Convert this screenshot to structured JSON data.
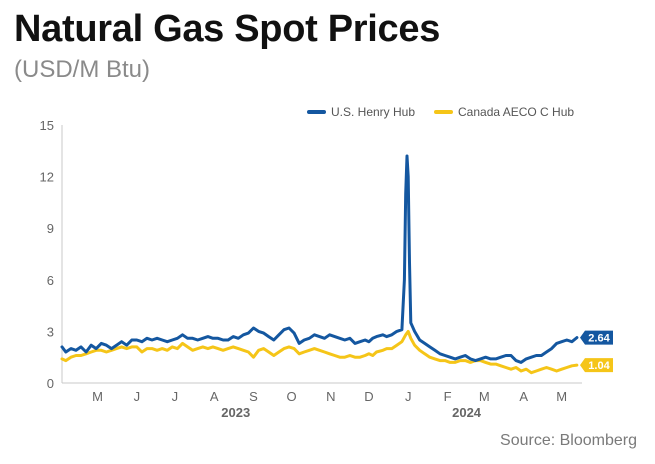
{
  "header": {
    "title": "Natural Gas Spot Prices",
    "subtitle": "(USD/M Btu)"
  },
  "footer": {
    "source": "Source: Bloomberg"
  },
  "colors": {
    "henry_hub": "#1457a0",
    "aeco": "#f5c518",
    "axis": "#c8c8c8",
    "tick_text": "#666666"
  },
  "chart_data": {
    "type": "line",
    "title": "Natural Gas Spot Prices",
    "subtitle": "(USD/M Btu)",
    "xlabel": "",
    "ylabel": "",
    "ylim": [
      0,
      15
    ],
    "yticks": [
      0,
      3,
      6,
      9,
      12,
      15
    ],
    "xlim": [
      "2023-04-17",
      "2024-05-31"
    ],
    "month_ticks": [
      {
        "label": "M",
        "date": "2023-05-15"
      },
      {
        "label": "J",
        "date": "2023-06-15"
      },
      {
        "label": "J",
        "date": "2023-07-15"
      },
      {
        "label": "A",
        "date": "2023-08-15"
      },
      {
        "label": "S",
        "date": "2023-09-15"
      },
      {
        "label": "O",
        "date": "2023-10-15"
      },
      {
        "label": "N",
        "date": "2023-11-15"
      },
      {
        "label": "D",
        "date": "2023-12-15"
      },
      {
        "label": "J",
        "date": "2024-01-15"
      },
      {
        "label": "F",
        "date": "2024-02-15"
      },
      {
        "label": "M",
        "date": "2024-03-15"
      },
      {
        "label": "A",
        "date": "2024-04-15"
      },
      {
        "label": "M",
        "date": "2024-05-15"
      }
    ],
    "year_labels": [
      {
        "label": "2023",
        "date": "2023-09-01"
      },
      {
        "label": "2024",
        "date": "2024-03-01"
      }
    ],
    "grid": false,
    "legend_position": "top-right",
    "end_labels": [
      {
        "series": "U.S. Henry Hub",
        "text": "2.64"
      },
      {
        "series": "Canada AECO C Hub",
        "text": "1.04"
      }
    ],
    "series": [
      {
        "name": "U.S. Henry Hub",
        "color": "#1457a0",
        "points": [
          [
            "2023-04-17",
            2.1
          ],
          [
            "2023-04-20",
            1.8
          ],
          [
            "2023-04-24",
            2.0
          ],
          [
            "2023-04-28",
            1.9
          ],
          [
            "2023-05-02",
            2.1
          ],
          [
            "2023-05-06",
            1.8
          ],
          [
            "2023-05-10",
            2.2
          ],
          [
            "2023-05-14",
            2.0
          ],
          [
            "2023-05-18",
            2.3
          ],
          [
            "2023-05-22",
            2.2
          ],
          [
            "2023-05-26",
            2.0
          ],
          [
            "2023-05-30",
            2.2
          ],
          [
            "2023-06-03",
            2.4
          ],
          [
            "2023-06-07",
            2.2
          ],
          [
            "2023-06-11",
            2.5
          ],
          [
            "2023-06-15",
            2.5
          ],
          [
            "2023-06-19",
            2.4
          ],
          [
            "2023-06-23",
            2.6
          ],
          [
            "2023-06-27",
            2.5
          ],
          [
            "2023-07-01",
            2.6
          ],
          [
            "2023-07-05",
            2.5
          ],
          [
            "2023-07-09",
            2.4
          ],
          [
            "2023-07-13",
            2.5
          ],
          [
            "2023-07-17",
            2.6
          ],
          [
            "2023-07-21",
            2.8
          ],
          [
            "2023-07-25",
            2.6
          ],
          [
            "2023-07-29",
            2.6
          ],
          [
            "2023-08-02",
            2.5
          ],
          [
            "2023-08-06",
            2.6
          ],
          [
            "2023-08-10",
            2.7
          ],
          [
            "2023-08-14",
            2.6
          ],
          [
            "2023-08-18",
            2.6
          ],
          [
            "2023-08-22",
            2.5
          ],
          [
            "2023-08-26",
            2.5
          ],
          [
            "2023-08-30",
            2.7
          ],
          [
            "2023-09-03",
            2.6
          ],
          [
            "2023-09-07",
            2.8
          ],
          [
            "2023-09-11",
            2.9
          ],
          [
            "2023-09-15",
            3.2
          ],
          [
            "2023-09-19",
            3.0
          ],
          [
            "2023-09-23",
            2.9
          ],
          [
            "2023-09-27",
            2.7
          ],
          [
            "2023-10-01",
            2.5
          ],
          [
            "2023-10-05",
            2.8
          ],
          [
            "2023-10-09",
            3.1
          ],
          [
            "2023-10-13",
            3.2
          ],
          [
            "2023-10-17",
            2.9
          ],
          [
            "2023-10-21",
            2.3
          ],
          [
            "2023-10-25",
            2.5
          ],
          [
            "2023-10-29",
            2.6
          ],
          [
            "2023-11-02",
            2.8
          ],
          [
            "2023-11-06",
            2.7
          ],
          [
            "2023-11-10",
            2.6
          ],
          [
            "2023-11-14",
            2.8
          ],
          [
            "2023-11-18",
            2.7
          ],
          [
            "2023-11-22",
            2.6
          ],
          [
            "2023-11-26",
            2.5
          ],
          [
            "2023-11-30",
            2.6
          ],
          [
            "2023-12-04",
            2.3
          ],
          [
            "2023-12-08",
            2.4
          ],
          [
            "2023-12-12",
            2.5
          ],
          [
            "2023-12-15",
            2.4
          ],
          [
            "2023-12-18",
            2.6
          ],
          [
            "2023-12-21",
            2.7
          ],
          [
            "2023-12-26",
            2.8
          ],
          [
            "2023-12-29",
            2.7
          ],
          [
            "2024-01-02",
            2.8
          ],
          [
            "2024-01-06",
            3.0
          ],
          [
            "2024-01-10",
            3.1
          ],
          [
            "2024-01-12",
            6.0
          ],
          [
            "2024-01-13",
            11.0
          ],
          [
            "2024-01-14",
            13.2
          ],
          [
            "2024-01-15",
            12.0
          ],
          [
            "2024-01-16",
            7.0
          ],
          [
            "2024-01-17",
            3.5
          ],
          [
            "2024-01-20",
            3.0
          ],
          [
            "2024-01-24",
            2.5
          ],
          [
            "2024-01-28",
            2.3
          ],
          [
            "2024-02-01",
            2.1
          ],
          [
            "2024-02-05",
            1.9
          ],
          [
            "2024-02-09",
            1.7
          ],
          [
            "2024-02-13",
            1.6
          ],
          [
            "2024-02-17",
            1.5
          ],
          [
            "2024-02-21",
            1.4
          ],
          [
            "2024-02-25",
            1.5
          ],
          [
            "2024-02-29",
            1.6
          ],
          [
            "2024-03-04",
            1.4
          ],
          [
            "2024-03-08",
            1.3
          ],
          [
            "2024-03-12",
            1.4
          ],
          [
            "2024-03-16",
            1.5
          ],
          [
            "2024-03-20",
            1.4
          ],
          [
            "2024-03-24",
            1.4
          ],
          [
            "2024-03-28",
            1.5
          ],
          [
            "2024-04-01",
            1.6
          ],
          [
            "2024-04-05",
            1.6
          ],
          [
            "2024-04-09",
            1.3
          ],
          [
            "2024-04-13",
            1.2
          ],
          [
            "2024-04-17",
            1.4
          ],
          [
            "2024-04-21",
            1.5
          ],
          [
            "2024-04-25",
            1.6
          ],
          [
            "2024-04-29",
            1.6
          ],
          [
            "2024-05-03",
            1.8
          ],
          [
            "2024-05-07",
            2.0
          ],
          [
            "2024-05-11",
            2.3
          ],
          [
            "2024-05-15",
            2.4
          ],
          [
            "2024-05-19",
            2.5
          ],
          [
            "2024-05-23",
            2.4
          ],
          [
            "2024-05-27",
            2.64
          ]
        ]
      },
      {
        "name": "Canada AECO C Hub",
        "color": "#f5c518",
        "points": [
          [
            "2023-04-17",
            1.4
          ],
          [
            "2023-04-20",
            1.3
          ],
          [
            "2023-04-24",
            1.5
          ],
          [
            "2023-04-28",
            1.6
          ],
          [
            "2023-05-02",
            1.6
          ],
          [
            "2023-05-06",
            1.7
          ],
          [
            "2023-05-10",
            1.8
          ],
          [
            "2023-05-14",
            1.9
          ],
          [
            "2023-05-18",
            1.9
          ],
          [
            "2023-05-22",
            1.8
          ],
          [
            "2023-05-26",
            1.9
          ],
          [
            "2023-05-30",
            2.0
          ],
          [
            "2023-06-03",
            2.1
          ],
          [
            "2023-06-07",
            2.0
          ],
          [
            "2023-06-11",
            2.1
          ],
          [
            "2023-06-15",
            2.1
          ],
          [
            "2023-06-19",
            1.8
          ],
          [
            "2023-06-23",
            2.0
          ],
          [
            "2023-06-27",
            2.0
          ],
          [
            "2023-07-01",
            1.9
          ],
          [
            "2023-07-05",
            2.0
          ],
          [
            "2023-07-09",
            1.9
          ],
          [
            "2023-07-13",
            2.1
          ],
          [
            "2023-07-17",
            2.0
          ],
          [
            "2023-07-21",
            2.3
          ],
          [
            "2023-07-25",
            2.1
          ],
          [
            "2023-07-29",
            1.9
          ],
          [
            "2023-08-02",
            2.0
          ],
          [
            "2023-08-06",
            2.1
          ],
          [
            "2023-08-10",
            2.0
          ],
          [
            "2023-08-14",
            2.1
          ],
          [
            "2023-08-18",
            2.0
          ],
          [
            "2023-08-22",
            1.9
          ],
          [
            "2023-08-26",
            2.0
          ],
          [
            "2023-08-30",
            2.1
          ],
          [
            "2023-09-03",
            2.0
          ],
          [
            "2023-09-07",
            1.9
          ],
          [
            "2023-09-11",
            1.8
          ],
          [
            "2023-09-15",
            1.5
          ],
          [
            "2023-09-19",
            1.9
          ],
          [
            "2023-09-23",
            2.0
          ],
          [
            "2023-09-27",
            1.8
          ],
          [
            "2023-10-01",
            1.6
          ],
          [
            "2023-10-05",
            1.8
          ],
          [
            "2023-10-09",
            2.0
          ],
          [
            "2023-10-13",
            2.1
          ],
          [
            "2023-10-17",
            2.0
          ],
          [
            "2023-10-21",
            1.7
          ],
          [
            "2023-10-25",
            1.8
          ],
          [
            "2023-10-29",
            1.9
          ],
          [
            "2023-11-02",
            2.0
          ],
          [
            "2023-11-06",
            1.9
          ],
          [
            "2023-11-10",
            1.8
          ],
          [
            "2023-11-14",
            1.7
          ],
          [
            "2023-11-18",
            1.6
          ],
          [
            "2023-11-22",
            1.5
          ],
          [
            "2023-11-26",
            1.5
          ],
          [
            "2023-11-30",
            1.6
          ],
          [
            "2023-12-04",
            1.5
          ],
          [
            "2023-12-08",
            1.5
          ],
          [
            "2023-12-12",
            1.6
          ],
          [
            "2023-12-15",
            1.7
          ],
          [
            "2023-12-18",
            1.6
          ],
          [
            "2023-12-21",
            1.8
          ],
          [
            "2023-12-26",
            1.9
          ],
          [
            "2023-12-29",
            2.0
          ],
          [
            "2024-01-02",
            2.0
          ],
          [
            "2024-01-06",
            2.2
          ],
          [
            "2024-01-10",
            2.4
          ],
          [
            "2024-01-13",
            2.8
          ],
          [
            "2024-01-15",
            3.0
          ],
          [
            "2024-01-17",
            2.6
          ],
          [
            "2024-01-20",
            2.2
          ],
          [
            "2024-01-24",
            1.9
          ],
          [
            "2024-01-28",
            1.7
          ],
          [
            "2024-02-01",
            1.5
          ],
          [
            "2024-02-05",
            1.4
          ],
          [
            "2024-02-09",
            1.3
          ],
          [
            "2024-02-13",
            1.3
          ],
          [
            "2024-02-17",
            1.2
          ],
          [
            "2024-02-21",
            1.2
          ],
          [
            "2024-02-25",
            1.3
          ],
          [
            "2024-02-29",
            1.3
          ],
          [
            "2024-03-04",
            1.2
          ],
          [
            "2024-03-08",
            1.3
          ],
          [
            "2024-03-12",
            1.3
          ],
          [
            "2024-03-16",
            1.2
          ],
          [
            "2024-03-20",
            1.1
          ],
          [
            "2024-03-24",
            1.1
          ],
          [
            "2024-03-28",
            1.0
          ],
          [
            "2024-04-01",
            0.9
          ],
          [
            "2024-04-05",
            0.8
          ],
          [
            "2024-04-09",
            0.9
          ],
          [
            "2024-04-13",
            0.7
          ],
          [
            "2024-04-17",
            0.8
          ],
          [
            "2024-04-21",
            0.6
          ],
          [
            "2024-04-25",
            0.7
          ],
          [
            "2024-04-29",
            0.8
          ],
          [
            "2024-05-03",
            0.9
          ],
          [
            "2024-05-07",
            0.8
          ],
          [
            "2024-05-11",
            0.7
          ],
          [
            "2024-05-15",
            0.8
          ],
          [
            "2024-05-19",
            0.9
          ],
          [
            "2024-05-23",
            1.0
          ],
          [
            "2024-05-27",
            1.04
          ]
        ]
      }
    ]
  }
}
